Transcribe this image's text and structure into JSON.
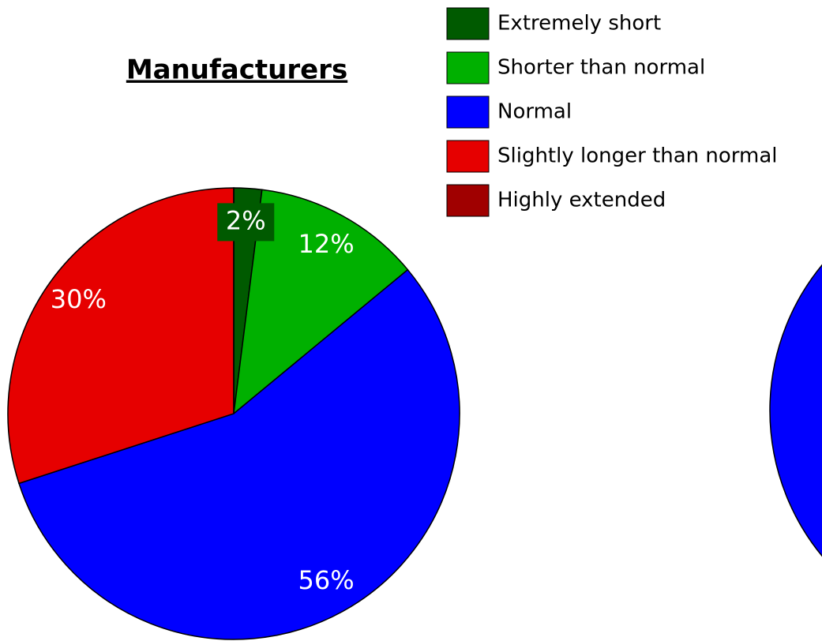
{
  "chart_data": {
    "type": "pie",
    "title": "Manufacturers",
    "categories": [
      "Extremely short",
      "Shorter than normal",
      "Normal",
      "Slightly longer than normal",
      "Highly extended"
    ],
    "values": [
      2,
      12,
      56,
      30,
      0
    ],
    "value_labels": [
      "2%",
      "12%",
      "56%",
      "30%",
      null
    ],
    "colors": [
      "#005a00",
      "#00b000",
      "#0000ff",
      "#e60000",
      "#a00000"
    ],
    "legend": "top-right"
  }
}
